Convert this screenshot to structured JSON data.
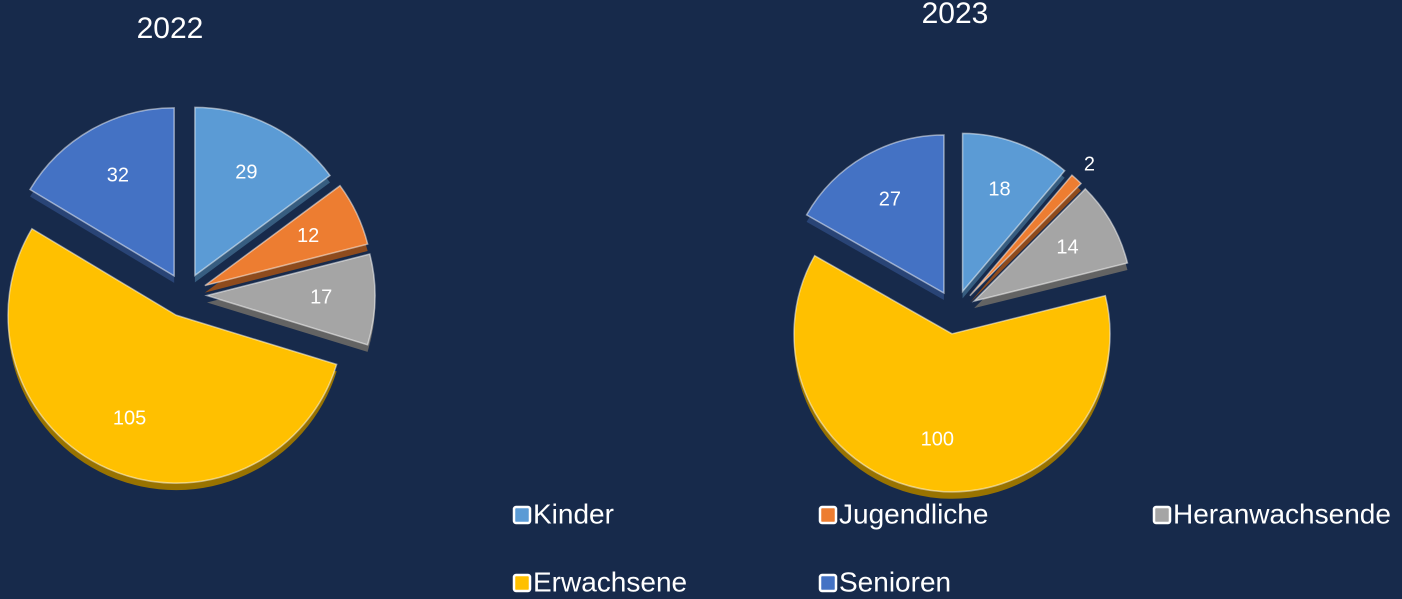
{
  "chart_data": [
    {
      "type": "pie",
      "title": "2022",
      "categories": [
        "Kinder",
        "Jugendliche",
        "Heranwachsende",
        "Erwachsene",
        "Senioren"
      ],
      "colors": [
        "#5b9bd5",
        "#ed7d31",
        "#a5a5a5",
        "#ffc000",
        "#4472c4"
      ],
      "values": [
        29,
        12,
        17,
        105,
        32
      ]
    },
    {
      "type": "pie",
      "title": "2023",
      "categories": [
        "Kinder",
        "Jugendliche",
        "Heranwachsende",
        "Erwachsene",
        "Senioren"
      ],
      "colors": [
        "#5b9bd5",
        "#ed7d31",
        "#a5a5a5",
        "#ffc000",
        "#4472c4"
      ],
      "values": [
        18,
        2,
        14,
        100,
        27
      ]
    }
  ]
}
